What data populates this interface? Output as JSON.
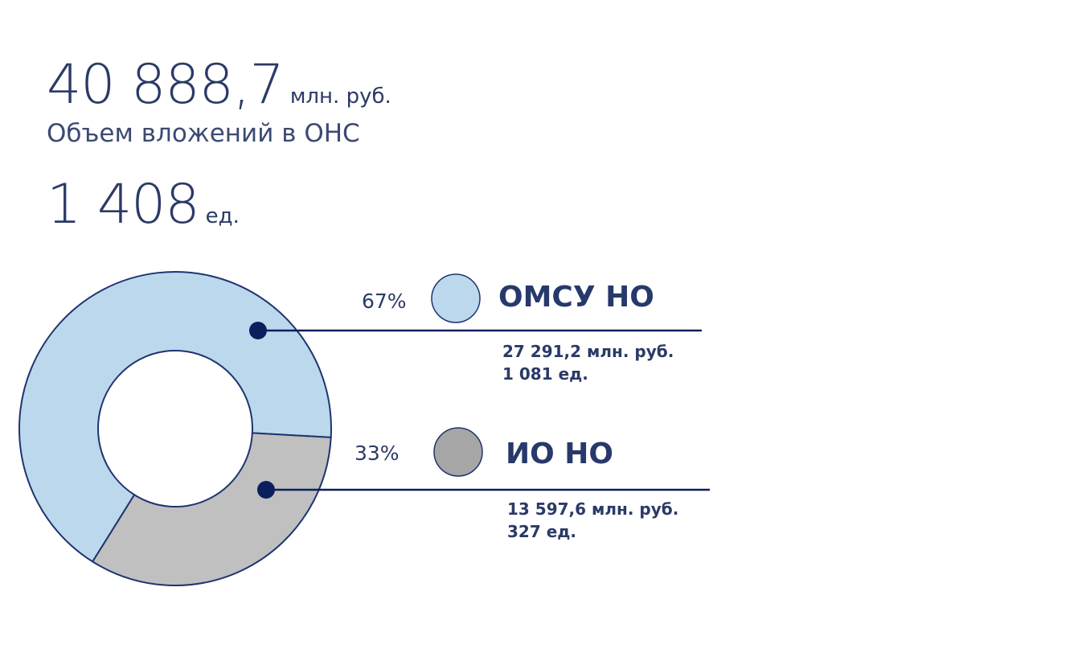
{
  "summary": {
    "volume_value": "40 888,7",
    "volume_unit": "млн. руб.",
    "volume_caption": "Объем вложений в ОНС",
    "count_value": "1 408",
    "count_unit": "ед."
  },
  "colors": {
    "text": "#2b3a67",
    "outline": "#1f3470",
    "leader": "#0a1f5c",
    "segment_1": "#bcd8ec",
    "segment_2": "#c0c0c0",
    "legend_2": "#a6a6a6"
  },
  "chart_data": {
    "type": "pie",
    "variant": "donut",
    "series": [
      {
        "name": "ОМСУ НО",
        "percent": 67,
        "percent_label": "67%",
        "amount_label": "27 291,2 млн. руб.",
        "count_label": "1 081 ед.",
        "amount": 27291.2,
        "count": 1081,
        "color": "#bcd8ec",
        "legend_color": "#bcd8ec"
      },
      {
        "name": "ИО НО",
        "percent": 33,
        "percent_label": "33%",
        "amount_label": "13 597,6 млн. руб.",
        "count_label": "327 ед.",
        "amount": 13597.6,
        "count": 327,
        "color": "#c0c0c0",
        "legend_color": "#a6a6a6"
      }
    ]
  }
}
